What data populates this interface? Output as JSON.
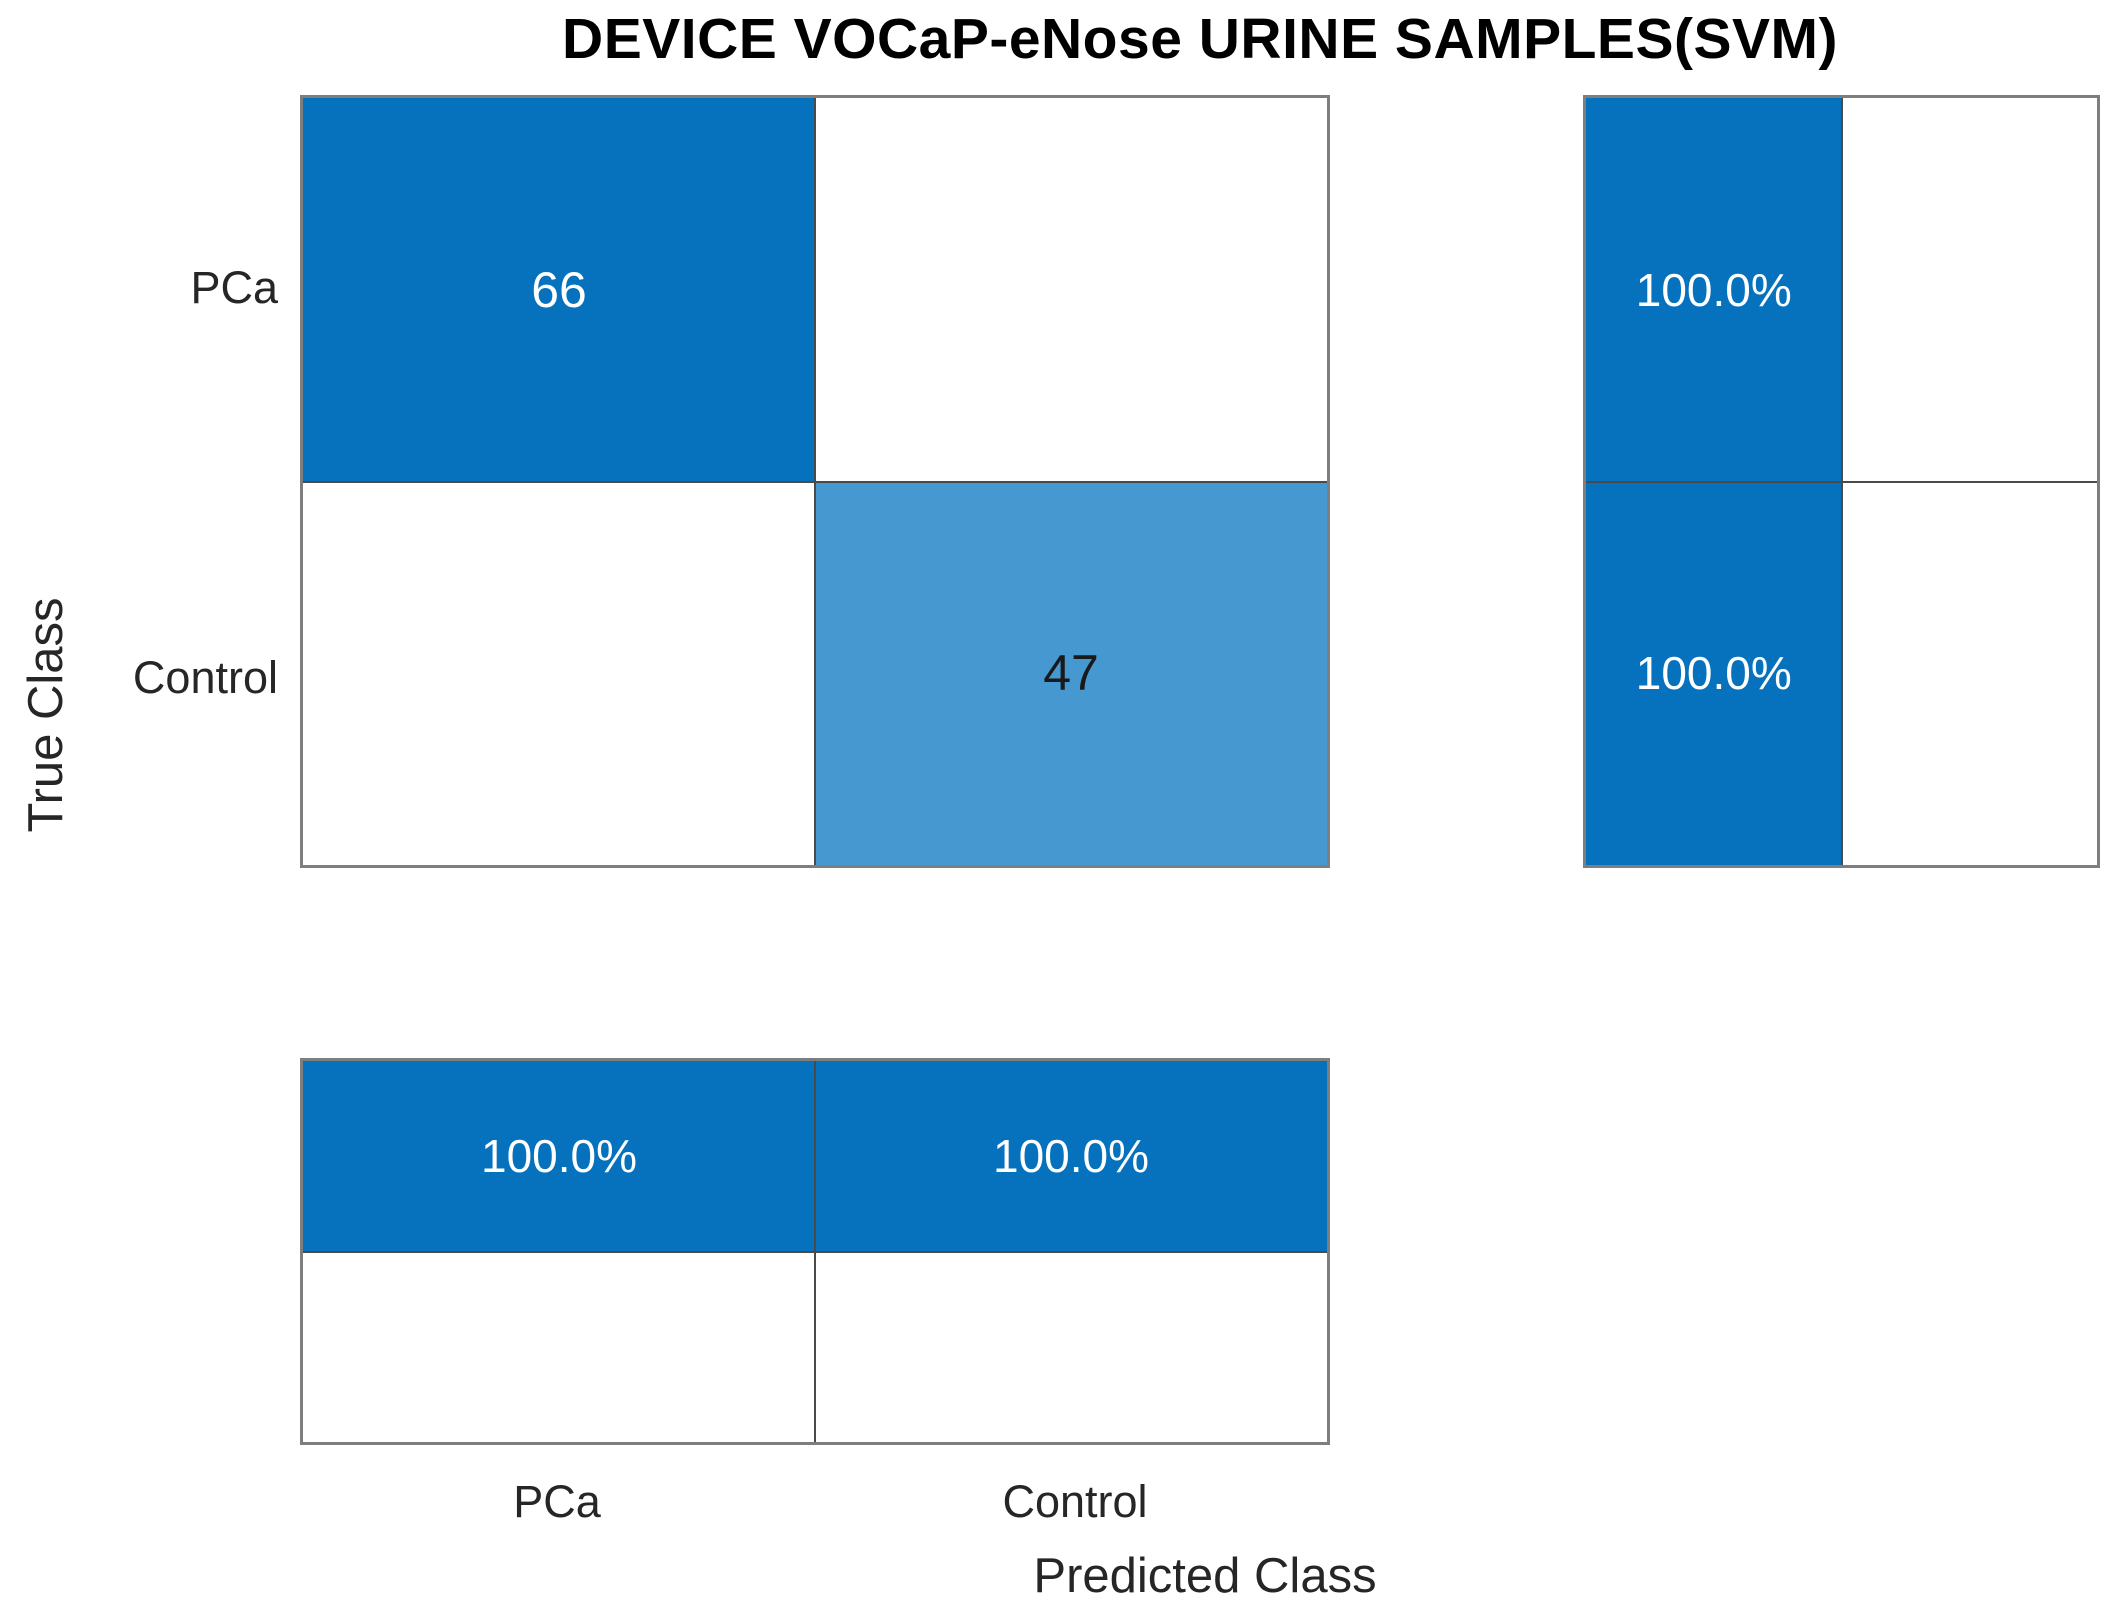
{
  "chart_data": {
    "type": "heatmap",
    "subtype": "confusion-matrix",
    "title": "DEVICE VOCaP-eNose URINE SAMPLES(SVM)",
    "xlabel": "Predicted Class",
    "ylabel": "True Class",
    "classes": [
      "PCa",
      "Control"
    ],
    "counts": [
      [
        66,
        0
      ],
      [
        0,
        47
      ]
    ],
    "cell_labels": [
      [
        "66",
        ""
      ],
      [
        "",
        "47"
      ]
    ],
    "row_summary_pct": [
      "100.0%",
      "100.0%"
    ],
    "col_summary_pct": [
      "100.0%",
      "100.0%"
    ],
    "layout": {
      "grid": "on",
      "legend": "none",
      "row_summary_position": "right",
      "column_summary_position": "bottom"
    },
    "colors": {
      "diagonal_strong": "#0672BD",
      "diagonal_light": "#4698D0",
      "empty_cell": "#FFFFFF",
      "count_text_on_dark": "#FFFFFF",
      "count_text_on_light": "#1A1A1A",
      "pct_text": "#FFFFFF",
      "axis_text": "#262626",
      "title_text": "#000000",
      "inner_grid": "#4A4A4A",
      "outer_border": "#7E7E7E"
    }
  }
}
